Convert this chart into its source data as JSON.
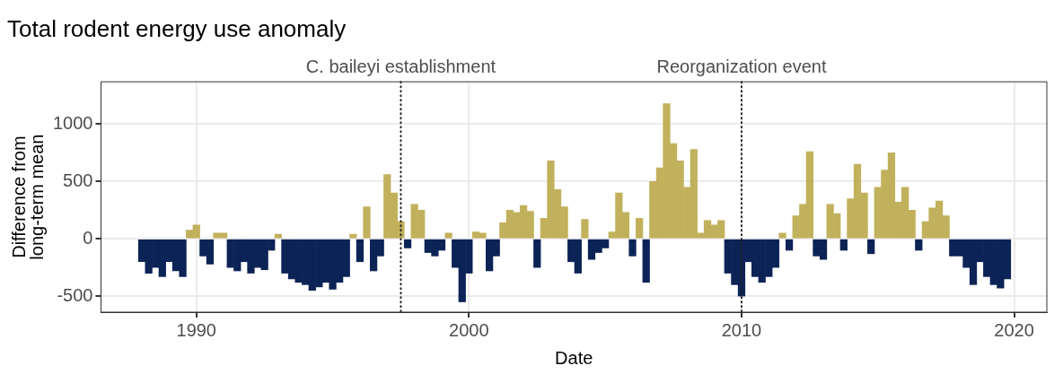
{
  "chart_data": {
    "type": "bar",
    "title": "Total rodent energy use anomaly",
    "xlabel": "Date",
    "ylabel": "Difference from\nlong-term mean",
    "x": [
      1988.0,
      1988.25,
      1988.5,
      1988.75,
      1989.0,
      1989.25,
      1989.5,
      1989.75,
      1990.0,
      1990.25,
      1990.5,
      1990.75,
      1991.0,
      1991.25,
      1991.5,
      1991.75,
      1992.0,
      1992.25,
      1992.5,
      1992.75,
      1993.0,
      1993.25,
      1993.5,
      1993.75,
      1994.0,
      1994.25,
      1994.5,
      1994.75,
      1995.0,
      1995.25,
      1995.5,
      1995.75,
      1996.0,
      1996.25,
      1996.5,
      1996.75,
      1997.0,
      1997.25,
      1997.5,
      1997.75,
      1998.0,
      1998.25,
      1998.5,
      1998.75,
      1999.0,
      1999.25,
      1999.5,
      1999.75,
      2000.0,
      2000.25,
      2000.5,
      2000.75,
      2001.0,
      2001.25,
      2001.5,
      2001.75,
      2002.0,
      2002.25,
      2002.5,
      2002.75,
      2003.0,
      2003.25,
      2003.5,
      2003.75,
      2004.0,
      2004.25,
      2004.5,
      2004.75,
      2005.0,
      2005.25,
      2005.5,
      2005.75,
      2006.0,
      2006.25,
      2006.5,
      2006.75,
      2007.0,
      2007.25,
      2007.5,
      2007.75,
      2008.0,
      2008.25,
      2008.5,
      2008.75,
      2009.0,
      2009.25,
      2009.5,
      2009.75,
      2010.0,
      2010.25,
      2010.5,
      2010.75,
      2011.0,
      2011.25,
      2011.5,
      2011.75,
      2012.0,
      2012.25,
      2012.5,
      2012.75,
      2013.0,
      2013.25,
      2013.5,
      2013.75,
      2014.0,
      2014.25,
      2014.5,
      2014.75,
      2015.0,
      2015.25,
      2015.5,
      2015.75,
      2016.0,
      2016.25,
      2016.5,
      2016.75,
      2017.0,
      2017.25,
      2017.5,
      2017.75,
      2018.0,
      2018.25,
      2018.5,
      2018.75,
      2019.0,
      2019.25,
      2019.5,
      2019.75
    ],
    "values": [
      -200,
      -300,
      -250,
      -330,
      -200,
      -280,
      -330,
      75,
      120,
      -150,
      -220,
      50,
      50,
      -250,
      -280,
      -200,
      -300,
      -250,
      -270,
      -100,
      40,
      -300,
      -350,
      -380,
      -400,
      -450,
      -420,
      -380,
      -440,
      -380,
      -330,
      40,
      -200,
      280,
      -280,
      -150,
      560,
      400,
      150,
      -80,
      300,
      250,
      -120,
      -150,
      -100,
      50,
      -250,
      -550,
      -300,
      60,
      50,
      -280,
      -150,
      140,
      250,
      230,
      290,
      240,
      -250,
      180,
      680,
      430,
      280,
      -200,
      -300,
      170,
      -180,
      -120,
      -80,
      60,
      400,
      230,
      -150,
      180,
      -380,
      500,
      620,
      1180,
      830,
      680,
      450,
      780,
      50,
      160,
      120,
      160,
      -300,
      -400,
      -500,
      -200,
      -330,
      -380,
      -330,
      -250,
      50,
      -100,
      200,
      300,
      760,
      -150,
      -180,
      300,
      220,
      -100,
      350,
      650,
      400,
      -130,
      450,
      600,
      750,
      320,
      450,
      250,
      -100,
      150,
      270,
      330,
      200,
      -150,
      -150,
      -250,
      -400,
      -200,
      -330,
      -400,
      -430,
      -350
    ],
    "colors": [
      "#0c2356",
      "#0c2356",
      "#0c2356",
      "#0c2356",
      "#0c2356",
      "#0c2356",
      "#0c2356",
      "#c2b15c",
      "#c2b15c",
      "#0c2356",
      "#0c2356",
      "#c2b15c",
      "#c2b15c",
      "#0c2356",
      "#0c2356",
      "#0c2356",
      "#0c2356",
      "#0c2356",
      "#0c2356",
      "#0c2356",
      "#c2b15c",
      "#0c2356",
      "#0c2356",
      "#0c2356",
      "#0c2356",
      "#0c2356",
      "#0c2356",
      "#0c2356",
      "#0c2356",
      "#0c2356",
      "#0c2356",
      "#c2b15c",
      "#0c2356",
      "#c2b15c",
      "#0c2356",
      "#0c2356",
      "#c2b15c",
      "#c2b15c",
      "#c2b15c",
      "#0c2356",
      "#c2b15c",
      "#c2b15c",
      "#0c2356",
      "#0c2356",
      "#0c2356",
      "#c2b15c",
      "#0c2356",
      "#0c2356",
      "#0c2356",
      "#c2b15c",
      "#c2b15c",
      "#0c2356",
      "#0c2356",
      "#c2b15c",
      "#c2b15c",
      "#c2b15c",
      "#c2b15c",
      "#c2b15c",
      "#0c2356",
      "#c2b15c",
      "#c2b15c",
      "#c2b15c",
      "#c2b15c",
      "#0c2356",
      "#0c2356",
      "#c2b15c",
      "#0c2356",
      "#0c2356",
      "#0c2356",
      "#c2b15c",
      "#c2b15c",
      "#c2b15c",
      "#0c2356",
      "#c2b15c",
      "#0c2356",
      "#c2b15c",
      "#c2b15c",
      "#c2b15c",
      "#c2b15c",
      "#c2b15c",
      "#c2b15c",
      "#c2b15c",
      "#c2b15c",
      "#c2b15c",
      "#c2b15c",
      "#c2b15c",
      "#0c2356",
      "#0c2356",
      "#0c2356",
      "#0c2356",
      "#0c2356",
      "#0c2356",
      "#0c2356",
      "#0c2356",
      "#c2b15c",
      "#0c2356",
      "#c2b15c",
      "#c2b15c",
      "#c2b15c",
      "#0c2356",
      "#0c2356",
      "#c2b15c",
      "#c2b15c",
      "#0c2356",
      "#c2b15c",
      "#c2b15c",
      "#c2b15c",
      "#0c2356",
      "#c2b15c",
      "#c2b15c",
      "#c2b15c",
      "#c2b15c",
      "#c2b15c",
      "#c2b15c",
      "#0c2356",
      "#c2b15c",
      "#c2b15c",
      "#c2b15c",
      "#c2b15c",
      "#0c2356",
      "#0c2356",
      "#0c2356",
      "#0c2356",
      "#0c2356",
      "#0c2356",
      "#0c2356",
      "#0c2356",
      "#0c2356"
    ],
    "xlim": [
      1986.5,
      2021.2
    ],
    "xticks": [
      1990,
      2000,
      2010,
      2020
    ],
    "ylim": [
      -640,
      1370
    ],
    "yticks": [
      -500,
      0,
      500,
      1000
    ],
    "grid": true,
    "ref_lines": [
      {
        "axis": "x",
        "value": 1997.5,
        "label": "C. baileyi establishment",
        "line_style": "dotted",
        "color": "#222222"
      },
      {
        "axis": "x",
        "value": 2010.0,
        "label": "Reorganization event",
        "line_style": "dotted",
        "color": "#222222"
      }
    ]
  }
}
